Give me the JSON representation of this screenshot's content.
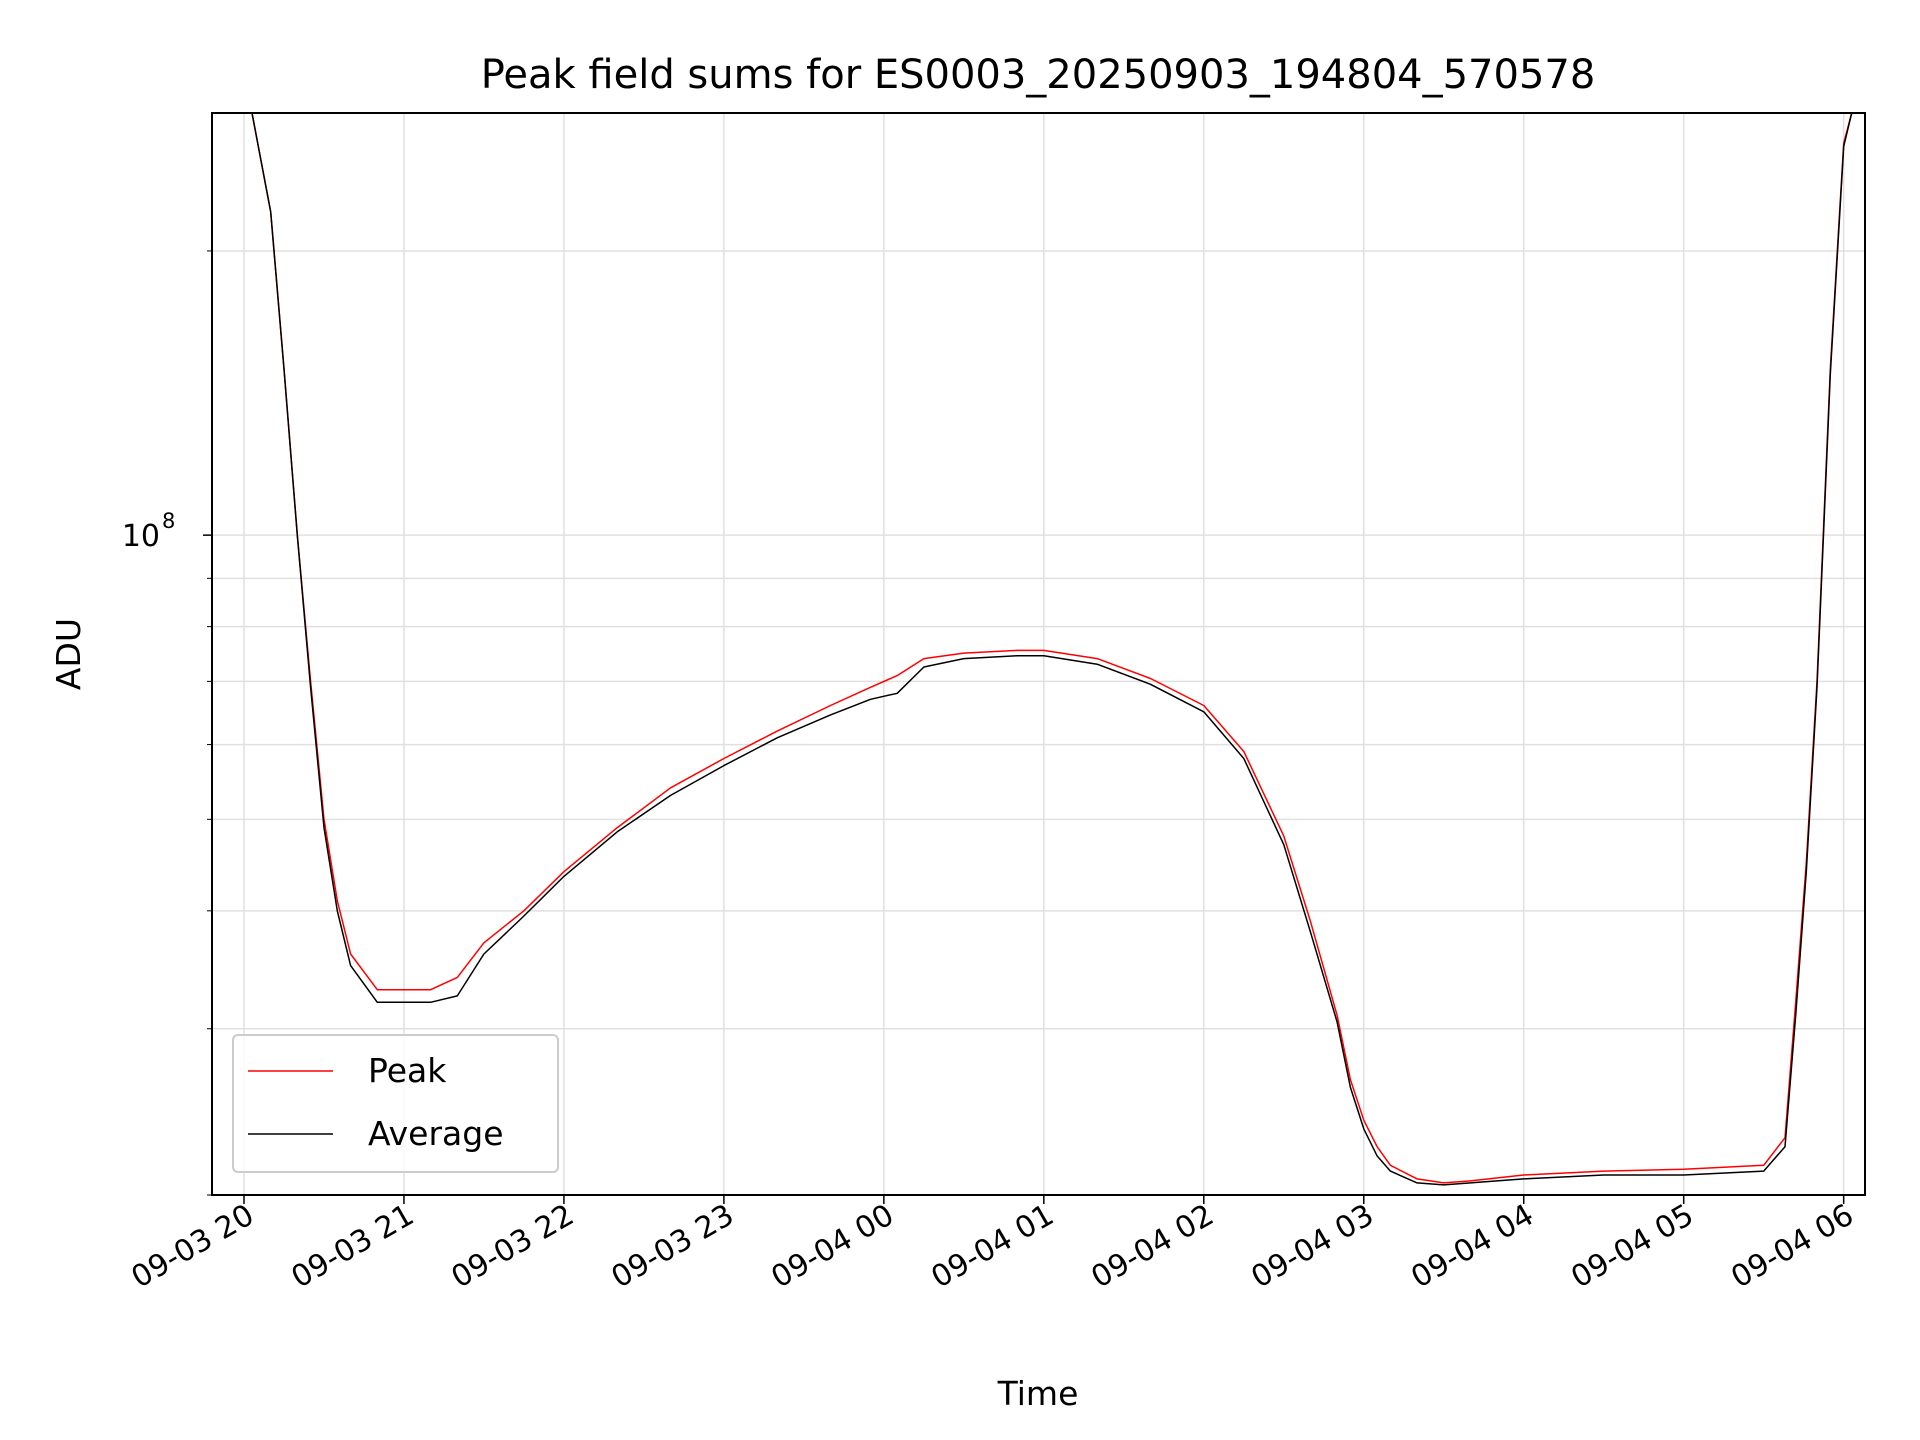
{
  "chart_data": {
    "type": "line",
    "title": "Peak field sums for ES0003_20250903_194804_570578",
    "xlabel": "Time",
    "ylabel": "ADU",
    "yscale": "log",
    "ylim": [
      20000000,
      280000000
    ],
    "xlim": [
      "2025-09-03 19:48",
      "2025-09-04 06:08"
    ],
    "grid": true,
    "legend_position": "lower-left",
    "x_ticks": [
      "2025-09-03 20:00",
      "2025-09-03 21:00",
      "2025-09-03 22:00",
      "2025-09-03 23:00",
      "2025-09-04 00:00",
      "2025-09-04 01:00",
      "2025-09-04 02:00",
      "2025-09-04 03:00",
      "2025-09-04 04:00",
      "2025-09-04 05:00",
      "2025-09-04 06:00"
    ],
    "x_tick_labels": [
      "09-03 20",
      "09-03 21",
      "09-03 22",
      "09-03 23",
      "09-04 00",
      "09-04 01",
      "09-04 02",
      "09-04 03",
      "09-04 04",
      "09-04 05",
      "09-04 06"
    ],
    "y_ticks": [
      100000000
    ],
    "y_tick_base": "10",
    "y_tick_exponent": "8",
    "series": [
      {
        "name": "Peak",
        "color": "#ff0000",
        "x": [
          "2025-09-03 20:03",
          "2025-09-03 20:10",
          "2025-09-03 20:15",
          "2025-09-03 20:20",
          "2025-09-03 20:25",
          "2025-09-03 20:30",
          "2025-09-03 20:35",
          "2025-09-03 20:40",
          "2025-09-03 20:50",
          "2025-09-03 21:00",
          "2025-09-03 21:10",
          "2025-09-03 21:20",
          "2025-09-03 21:30",
          "2025-09-03 21:45",
          "2025-09-03 22:00",
          "2025-09-03 22:20",
          "2025-09-03 22:40",
          "2025-09-03 23:00",
          "2025-09-03 23:20",
          "2025-09-03 23:40",
          "2025-09-03 23:55",
          "2025-09-04 00:05",
          "2025-09-04 00:15",
          "2025-09-04 00:30",
          "2025-09-04 00:50",
          "2025-09-04 01:00",
          "2025-09-04 01:20",
          "2025-09-04 01:40",
          "2025-09-04 02:00",
          "2025-09-04 02:15",
          "2025-09-04 02:30",
          "2025-09-04 02:40",
          "2025-09-04 02:50",
          "2025-09-04 02:55",
          "2025-09-04 03:00",
          "2025-09-04 03:05",
          "2025-09-04 03:10",
          "2025-09-04 03:20",
          "2025-09-04 03:30",
          "2025-09-04 03:40",
          "2025-09-04 04:00",
          "2025-09-04 04:30",
          "2025-09-04 05:00",
          "2025-09-04 05:30",
          "2025-09-04 05:38",
          "2025-09-04 05:42",
          "2025-09-04 05:46",
          "2025-09-04 05:50",
          "2025-09-04 05:55",
          "2025-09-04 06:00",
          "2025-09-04 06:03"
        ],
        "y": [
          280000000,
          220000000,
          150000000,
          100000000,
          70000000,
          50000000,
          41000000,
          36000000,
          33000000,
          33000000,
          33000000,
          34000000,
          37000000,
          40000000,
          44000000,
          49000000,
          54000000,
          58000000,
          62000000,
          66000000,
          69000000,
          71000000,
          74000000,
          75000000,
          75500000,
          75500000,
          74000000,
          70500000,
          66000000,
          59000000,
          48000000,
          39000000,
          31000000,
          26500000,
          24000000,
          22500000,
          21500000,
          20800000,
          20600000,
          20700000,
          21000000,
          21200000,
          21300000,
          21500000,
          23000000,
          32000000,
          45000000,
          70000000,
          150000000,
          260000000,
          280000000
        ]
      },
      {
        "name": "Average",
        "color": "#000000",
        "x": [
          "2025-09-03 20:03",
          "2025-09-03 20:10",
          "2025-09-03 20:15",
          "2025-09-03 20:20",
          "2025-09-03 20:25",
          "2025-09-03 20:30",
          "2025-09-03 20:35",
          "2025-09-03 20:40",
          "2025-09-03 20:50",
          "2025-09-03 21:00",
          "2025-09-03 21:10",
          "2025-09-03 21:20",
          "2025-09-03 21:30",
          "2025-09-03 21:45",
          "2025-09-03 22:00",
          "2025-09-03 22:20",
          "2025-09-03 22:40",
          "2025-09-03 23:00",
          "2025-09-03 23:20",
          "2025-09-03 23:40",
          "2025-09-03 23:55",
          "2025-09-04 00:05",
          "2025-09-04 00:15",
          "2025-09-04 00:30",
          "2025-09-04 00:50",
          "2025-09-04 01:00",
          "2025-09-04 01:20",
          "2025-09-04 01:40",
          "2025-09-04 02:00",
          "2025-09-04 02:15",
          "2025-09-04 02:30",
          "2025-09-04 02:40",
          "2025-09-04 02:50",
          "2025-09-04 02:55",
          "2025-09-04 03:00",
          "2025-09-04 03:05",
          "2025-09-04 03:10",
          "2025-09-04 03:20",
          "2025-09-04 03:30",
          "2025-09-04 03:40",
          "2025-09-04 04:00",
          "2025-09-04 04:30",
          "2025-09-04 05:00",
          "2025-09-04 05:30",
          "2025-09-04 05:38",
          "2025-09-04 05:42",
          "2025-09-04 05:46",
          "2025-09-04 05:50",
          "2025-09-04 05:55",
          "2025-09-04 06:00",
          "2025-09-04 06:03"
        ],
        "y": [
          280000000,
          220000000,
          150000000,
          100000000,
          69000000,
          49000000,
          40000000,
          35000000,
          32000000,
          32000000,
          32000000,
          32500000,
          36000000,
          39500000,
          43500000,
          48500000,
          53000000,
          57000000,
          61000000,
          64500000,
          67000000,
          68000000,
          72500000,
          74000000,
          74500000,
          74500000,
          73000000,
          69500000,
          65000000,
          58000000,
          47000000,
          38000000,
          30500000,
          26000000,
          23500000,
          22000000,
          21200000,
          20600000,
          20500000,
          20600000,
          20800000,
          21000000,
          21000000,
          21200000,
          22500000,
          31000000,
          44000000,
          69000000,
          148000000,
          258000000,
          280000000
        ]
      }
    ]
  }
}
